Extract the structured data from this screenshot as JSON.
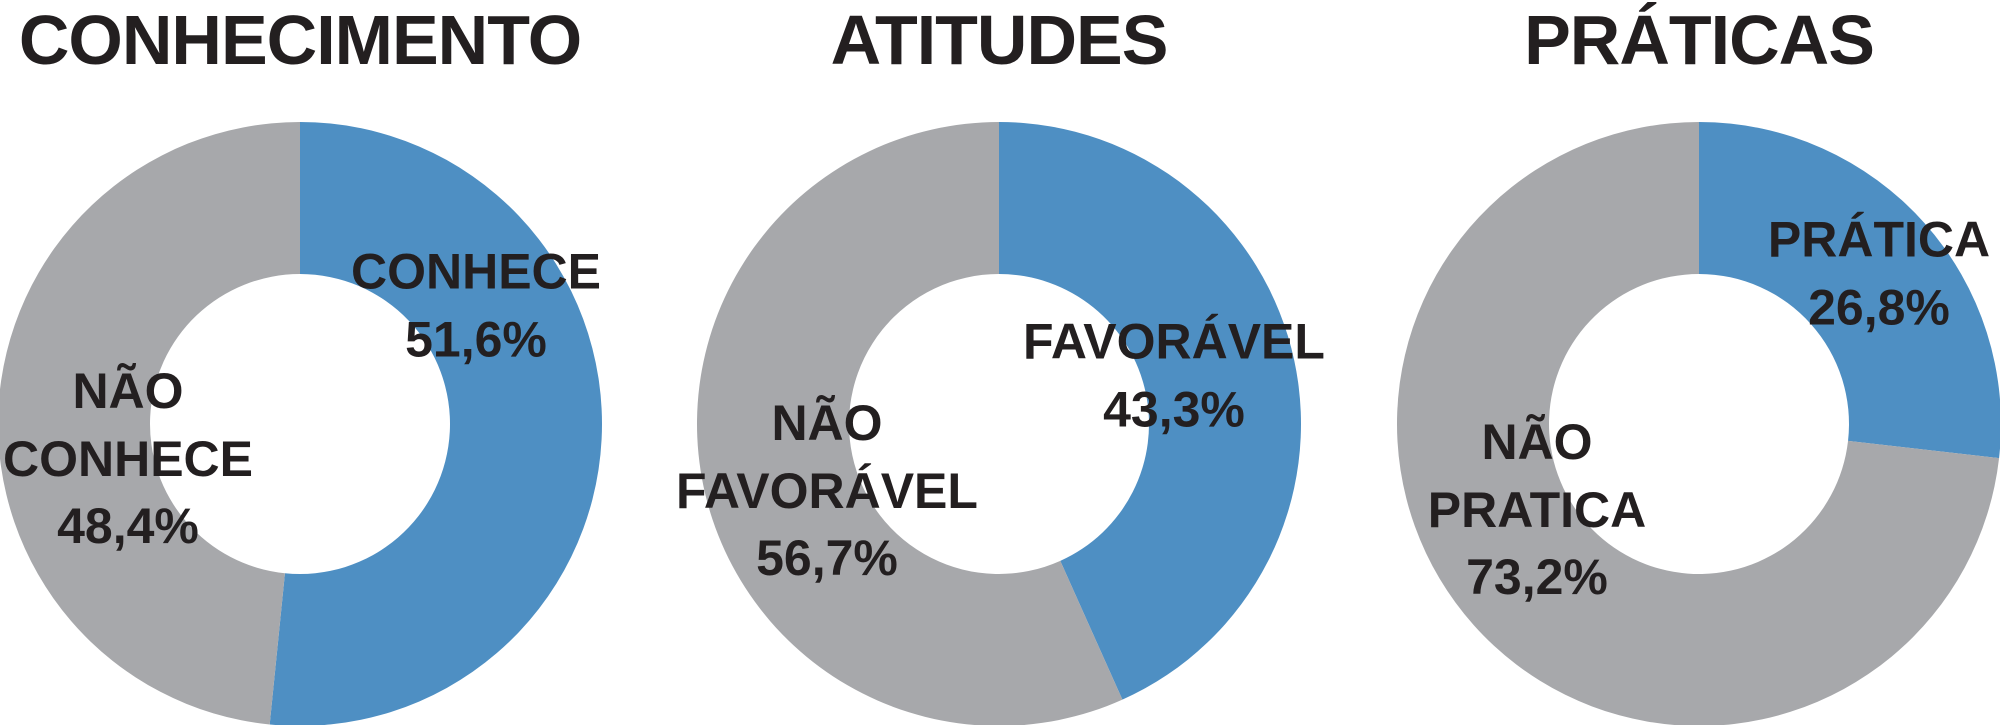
{
  "chart_data": [
    {
      "type": "pie",
      "title": "CONHECIMENTO",
      "categories": [
        "CONHECE",
        "NÃO CONHECE"
      ],
      "values": [
        51.6,
        48.4
      ],
      "value_labels": [
        "51,6%",
        "48,4%"
      ],
      "colors": [
        "#4e8fc3",
        "#a7a8ab"
      ],
      "donut": true
    },
    {
      "type": "pie",
      "title": "ATITUDES",
      "categories": [
        "FAVORÁVEL",
        "NÃO FAVORÁVEL"
      ],
      "values": [
        43.3,
        56.7
      ],
      "value_labels": [
        "43,3%",
        "56,7%"
      ],
      "colors": [
        "#4e8fc3",
        "#a7a8ab"
      ],
      "donut": true
    },
    {
      "type": "pie",
      "title": "PRÁTICAS",
      "categories": [
        "PRÁTICA",
        "NÃO PRATICA"
      ],
      "values": [
        26.8,
        73.2
      ],
      "value_labels": [
        "26,8%",
        "73,2%"
      ],
      "colors": [
        "#4e8fc3",
        "#a7a8ab"
      ],
      "donut": true
    }
  ]
}
